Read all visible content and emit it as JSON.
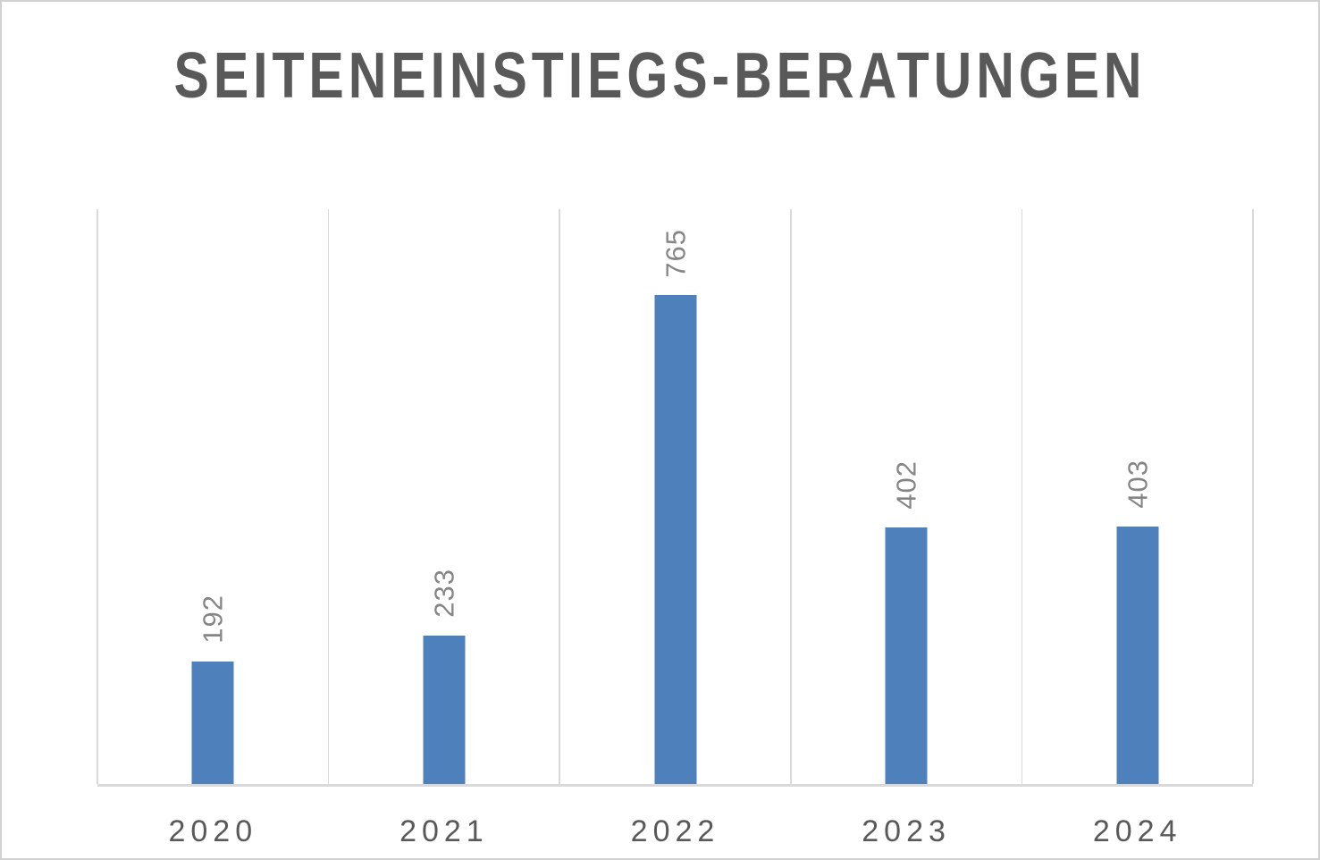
{
  "chart_data": {
    "type": "bar",
    "title": "SEITENEINSTIEGS-BERATUNGEN",
    "categories": [
      "2020",
      "2021",
      "2022",
      "2023",
      "2024"
    ],
    "values": [
      192,
      233,
      765,
      402,
      403
    ],
    "xlabel": "",
    "ylabel": "",
    "ylim": [
      0,
      900
    ],
    "y_axis_visible": false,
    "horizontal_gridlines": false,
    "vertical_gridlines": "category-boundaries",
    "legend": "none",
    "data_labels": {
      "position": "outside-end",
      "rotation_degrees": -90
    }
  },
  "style": {
    "bar_color": "#4e80bc",
    "title_color": "#595959",
    "category_label_color": "#595959",
    "data_label_color": "#858585",
    "gridline_color": "#d9d9d9",
    "axis_line_color": "#d9d9d9",
    "background_color": "#ffffff",
    "frame_border_color": "#d1d1d1"
  }
}
